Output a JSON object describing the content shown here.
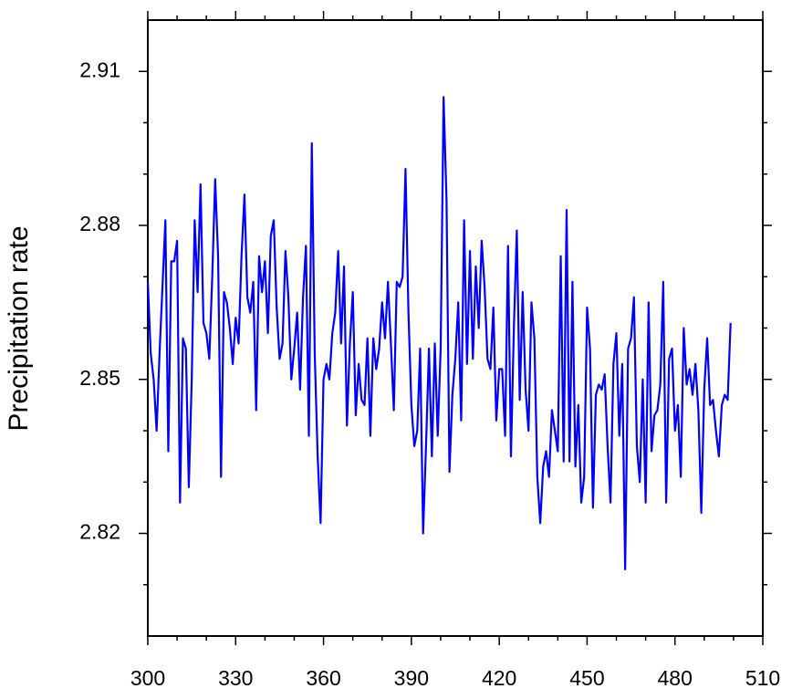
{
  "chart_data": {
    "type": "line",
    "y_label": "Precipitation rate",
    "x": [
      300,
      301,
      302,
      303,
      304,
      305,
      306,
      307,
      308,
      309,
      310,
      311,
      312,
      313,
      314,
      315,
      316,
      317,
      318,
      319,
      320,
      321,
      322,
      323,
      324,
      325,
      326,
      327,
      328,
      329,
      330,
      331,
      332,
      333,
      334,
      335,
      336,
      337,
      338,
      339,
      340,
      341,
      342,
      343,
      344,
      345,
      346,
      347,
      348,
      349,
      350,
      351,
      352,
      353,
      354,
      355,
      356,
      357,
      358,
      359,
      360,
      361,
      362,
      363,
      364,
      365,
      366,
      367,
      368,
      369,
      370,
      371,
      372,
      373,
      374,
      375,
      376,
      377,
      378,
      379,
      380,
      381,
      382,
      383,
      384,
      385,
      386,
      387,
      388,
      389,
      390,
      391,
      392,
      393,
      394,
      395,
      396,
      397,
      398,
      399,
      400,
      401,
      402,
      403,
      404,
      405,
      406,
      407,
      408,
      409,
      410,
      411,
      412,
      413,
      414,
      415,
      416,
      417,
      418,
      419,
      420,
      421,
      422,
      423,
      424,
      425,
      426,
      427,
      428,
      429,
      430,
      431,
      432,
      433,
      434,
      435,
      436,
      437,
      438,
      439,
      440,
      441,
      442,
      443,
      444,
      445,
      446,
      447,
      448,
      449,
      450,
      451,
      452,
      453,
      454,
      455,
      456,
      457,
      458,
      459,
      460,
      461,
      462,
      463,
      464,
      465,
      466,
      467,
      468,
      469,
      470,
      471,
      472,
      473,
      474,
      475,
      476,
      477,
      478,
      479,
      480,
      481,
      482,
      483,
      484,
      485,
      486,
      487,
      488,
      489,
      490,
      491,
      492,
      493,
      494,
      495,
      496,
      497,
      498,
      499
    ],
    "series": [
      {
        "color": "#0000ff",
        "values": [
          2.869,
          2.855,
          2.85,
          2.84,
          2.855,
          2.868,
          2.881,
          2.836,
          2.873,
          2.873,
          2.877,
          2.826,
          2.858,
          2.856,
          2.829,
          2.85,
          2.881,
          2.867,
          2.888,
          2.861,
          2.859,
          2.854,
          2.87,
          2.889,
          2.874,
          2.831,
          2.867,
          2.865,
          2.86,
          2.853,
          2.862,
          2.857,
          2.874,
          2.886,
          2.866,
          2.863,
          2.869,
          2.844,
          2.874,
          2.867,
          2.873,
          2.859,
          2.878,
          2.881,
          2.864,
          2.854,
          2.857,
          2.875,
          2.866,
          2.85,
          2.856,
          2.863,
          2.848,
          2.866,
          2.876,
          2.839,
          2.896,
          2.855,
          2.835,
          2.822,
          2.85,
          2.853,
          2.85,
          2.859,
          2.863,
          2.875,
          2.857,
          2.872,
          2.841,
          2.857,
          2.867,
          2.843,
          2.853,
          2.846,
          2.845,
          2.858,
          2.839,
          2.858,
          2.852,
          2.856,
          2.865,
          2.858,
          2.869,
          2.857,
          2.844,
          2.869,
          2.868,
          2.87,
          2.891,
          2.863,
          2.845,
          2.837,
          2.84,
          2.856,
          2.82,
          2.837,
          2.856,
          2.835,
          2.857,
          2.839,
          2.856,
          2.905,
          2.885,
          2.832,
          2.847,
          2.854,
          2.865,
          2.842,
          2.881,
          2.853,
          2.875,
          2.854,
          2.872,
          2.86,
          2.877,
          2.868,
          2.854,
          2.852,
          2.864,
          2.842,
          2.852,
          2.852,
          2.839,
          2.876,
          2.835,
          2.86,
          2.879,
          2.846,
          2.867,
          2.848,
          2.84,
          2.865,
          2.858,
          2.831,
          2.822,
          2.833,
          2.836,
          2.831,
          2.844,
          2.84,
          2.836,
          2.874,
          2.834,
          2.883,
          2.834,
          2.869,
          2.833,
          2.845,
          2.826,
          2.831,
          2.864,
          2.856,
          2.825,
          2.847,
          2.849,
          2.848,
          2.851,
          2.837,
          2.826,
          2.853,
          2.859,
          2.839,
          2.853,
          2.813,
          2.856,
          2.858,
          2.866,
          2.837,
          2.83,
          2.85,
          2.826,
          2.865,
          2.836,
          2.843,
          2.844,
          2.849,
          2.869,
          2.826,
          2.854,
          2.856,
          2.84,
          2.845,
          2.831,
          2.86,
          2.849,
          2.852,
          2.847,
          2.853,
          2.844,
          2.824,
          2.848,
          2.858,
          2.845,
          2.846,
          2.84,
          2.835,
          2.845,
          2.847,
          2.846,
          2.861
        ]
      }
    ],
    "xlim": [
      300,
      510
    ],
    "xticks": [
      300,
      330,
      360,
      390,
      420,
      450,
      480,
      510
    ],
    "xminorticks": [
      310,
      320,
      340,
      350,
      370,
      380,
      400,
      410,
      430,
      440,
      460,
      470,
      490,
      500
    ],
    "ylim": [
      2.8,
      2.92
    ],
    "yticks": [
      2.82,
      2.85,
      2.88,
      2.91
    ],
    "yminorticks": [
      2.81,
      2.83,
      2.84,
      2.86,
      2.87,
      2.89,
      2.9
    ]
  }
}
